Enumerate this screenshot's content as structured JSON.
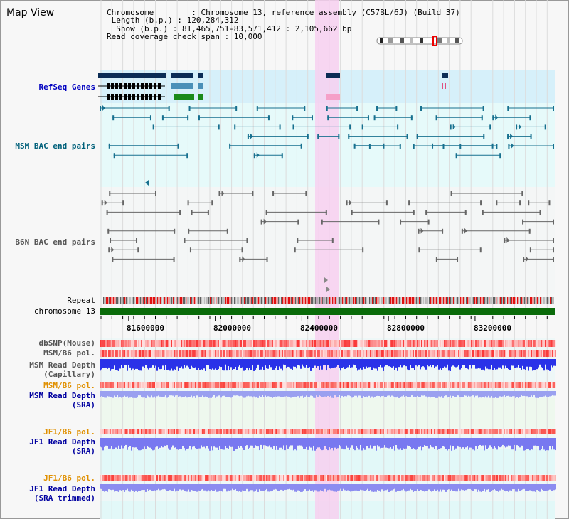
{
  "title": "Map View",
  "info": {
    "chromosome": "Chromosome        : Chromosome 13, reference assembly (C57BL/6J) (Build 37)",
    "length": " Length (b.p.) : 120,284,312",
    "show": "  Show (b.p.) : 81,465,751-83,571,412 : 2,105,662 bp",
    "coverage": "Read coverage check span : 10,000"
  },
  "tracks": {
    "refseq": "RefSeq Genes",
    "msm_bac": "MSM BAC end pairs",
    "b6n_bac": "B6N BAC end pairs",
    "repeat": "Repeat",
    "chromosome": "chromosome 13",
    "dbsnp": "dbSNP(Mouse)",
    "msm_b6_pol_1": "MSM/B6 pol.",
    "msm_read_depth_cap_1": "MSM Read Depth",
    "msm_read_depth_cap_2": "(Capillary)",
    "msm_b6_pol_2": "MSM/B6 pol.",
    "msm_read_depth_sra_1": "MSM Read Depth",
    "msm_read_depth_sra_2": "(SRA)",
    "jf1_b6_pol_1": "JF1/B6 pol.",
    "jf1_read_depth_sra_1": "JF1 Read Depth",
    "jf1_read_depth_sra_2": "(SRA)",
    "jf1_b6_pol_2": "JF1/B6 pol.",
    "jf1_read_depth_trim_1": "JF1 Read Depth",
    "jf1_read_depth_trim_2": "(SRA trimmed)"
  },
  "axis": {
    "ticks": [
      "81600000",
      "82000000",
      "82400000",
      "82800000",
      "83200000"
    ],
    "tick_values": [
      81600000,
      82000000,
      82400000,
      82800000,
      83200000
    ],
    "range": [
      81465751,
      83571412
    ],
    "highlight": [
      82470000,
      82580000
    ]
  },
  "colors": {
    "highlight": "#f7d0f0",
    "refseq_bg": "#d6f0fa",
    "msm_bg": "#e6fafa",
    "chromosome_bar": "#0a6b0a",
    "msm_label": "#00607a",
    "b6n_label": "#555555",
    "sra_label": "#0000a0",
    "pol_label": "#e09000"
  }
}
